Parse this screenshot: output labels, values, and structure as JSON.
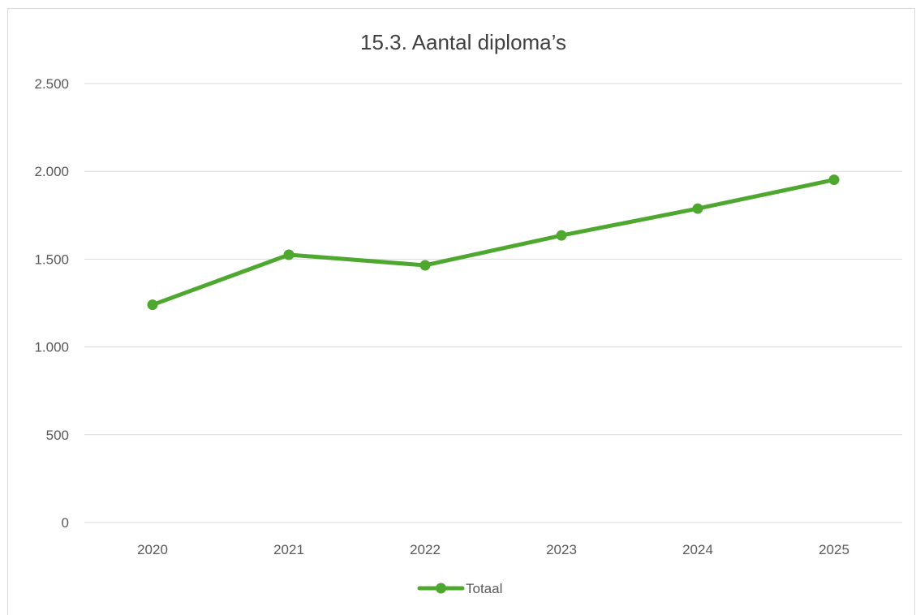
{
  "chart_data": {
    "type": "line",
    "title": "15.3. Aantal diploma’s",
    "categories": [
      "2020",
      "2021",
      "2022",
      "2023",
      "2024",
      "2025"
    ],
    "series": [
      {
        "name": "Totaal",
        "values": [
          1240,
          1525,
          1465,
          1635,
          1788,
          1952
        ],
        "color": "#4ea72e"
      }
    ],
    "ylim": [
      0,
      2500
    ],
    "yticks": [
      0,
      500,
      1000,
      1500,
      2000,
      2500
    ],
    "ytick_labels": [
      "0",
      "500",
      "1.000",
      "1.500",
      "2.000",
      "2.500"
    ],
    "grid": true,
    "legend": "bottom",
    "gridline_color": "#d9d9d9"
  }
}
